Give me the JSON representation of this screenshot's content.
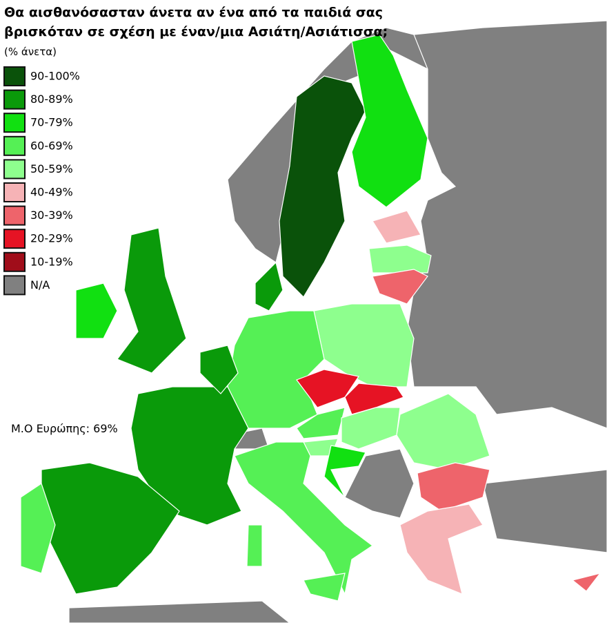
{
  "title": [
    "Θα αισθανόσασταν άνετα αν ένα από τα παιδιά σας",
    "βρισκόταν σε σχέση με έναν/μια Ασιάτη/Ασιάτισσα;"
  ],
  "subtitle": "(% άνετα)",
  "legend": [
    {
      "label": "90-100%",
      "color": "#0a520a"
    },
    {
      "label": "80-89%",
      "color": "#0a9a0a"
    },
    {
      "label": "70-79%",
      "color": "#11e011"
    },
    {
      "label": "60-69%",
      "color": "#55f055"
    },
    {
      "label": "50-59%",
      "color": "#8eff8e"
    },
    {
      "label": "40-49%",
      "color": "#f6b3b6"
    },
    {
      "label": "30-39%",
      "color": "#ee646b"
    },
    {
      "label": "20-29%",
      "color": "#e61324"
    },
    {
      "label": "10-19%",
      "color": "#a00d1a"
    },
    {
      "label": "N/A",
      "color": "#808080"
    }
  ],
  "annotation": "Μ.Ο Ευρώπης: 69%"
}
